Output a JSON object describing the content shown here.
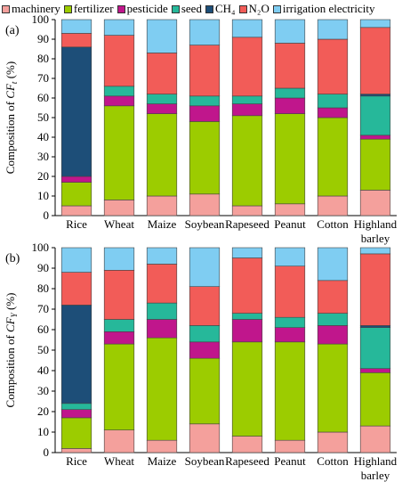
{
  "legend": [
    {
      "name": "machinery",
      "color": "#f4a09c"
    },
    {
      "name": "fertilizer",
      "color": "#9ccc00"
    },
    {
      "name": "pesticide",
      "color": "#c0168c"
    },
    {
      "name": "seed",
      "color": "#26b89a"
    },
    {
      "name": "CH₄",
      "color": "#1d4e78"
    },
    {
      "name": "N₂O",
      "color": "#f25c58"
    },
    {
      "name": "irrigation electricity",
      "color": "#7fcdf2"
    }
  ],
  "chart_data": [
    {
      "type": "bar",
      "stacked": true,
      "panel_label": "(a)",
      "ylabel_prefix": "Composition of ",
      "ylabel_symbol": "CF",
      "ylabel_sub": "t",
      "ylabel_suffix": " (%)",
      "ylim": [
        0,
        100
      ],
      "yticks": [
        0,
        10,
        20,
        30,
        40,
        50,
        60,
        70,
        80,
        90,
        100
      ],
      "categories": [
        "Rice",
        "Wheat",
        "Maize",
        "Soybean",
        "Rapeseed",
        "Peanut",
        "Cotton",
        "Highland barley"
      ],
      "series": [
        {
          "name": "machinery",
          "values": [
            5,
            8,
            10,
            11,
            5,
            6,
            10,
            13
          ]
        },
        {
          "name": "fertilizer",
          "values": [
            12,
            48,
            42,
            37,
            46,
            46,
            40,
            26
          ]
        },
        {
          "name": "pesticide",
          "values": [
            3,
            5,
            5,
            8,
            6,
            8,
            5,
            2
          ]
        },
        {
          "name": "seed",
          "values": [
            0,
            5,
            5,
            5,
            4,
            5,
            7,
            20
          ]
        },
        {
          "name": "CH₄",
          "values": [
            66,
            0,
            0,
            0,
            0,
            0,
            0,
            1
          ]
        },
        {
          "name": "N₂O",
          "values": [
            7,
            26,
            21,
            26,
            30,
            23,
            28,
            34
          ]
        },
        {
          "name": "irrigation electricity",
          "values": [
            7,
            8,
            17,
            13,
            9,
            12,
            10,
            4
          ]
        }
      ]
    },
    {
      "type": "bar",
      "stacked": true,
      "panel_label": "(b)",
      "ylabel_prefix": "Composition of ",
      "ylabel_symbol": "CF",
      "ylabel_sub": "Y",
      "ylabel_suffix": " (%)",
      "ylim": [
        0,
        100
      ],
      "yticks": [
        0,
        10,
        20,
        30,
        40,
        50,
        60,
        70,
        80,
        90,
        100
      ],
      "categories": [
        "Rice",
        "Wheat",
        "Maize",
        "Soybean",
        "Rapeseed",
        "Peanut",
        "Cotton",
        "Highland barley"
      ],
      "series": [
        {
          "name": "machinery",
          "values": [
            2,
            11,
            6,
            14,
            8,
            6,
            10,
            13
          ]
        },
        {
          "name": "fertilizer",
          "values": [
            15,
            42,
            50,
            32,
            46,
            48,
            43,
            26
          ]
        },
        {
          "name": "pesticide",
          "values": [
            4,
            6,
            9,
            8,
            11,
            7,
            9,
            2
          ]
        },
        {
          "name": "seed",
          "values": [
            3,
            6,
            8,
            8,
            3,
            5,
            6,
            20
          ]
        },
        {
          "name": "CH₄",
          "values": [
            48,
            0,
            0,
            0,
            0,
            0,
            0,
            1
          ]
        },
        {
          "name": "N₂O",
          "values": [
            16,
            24,
            19,
            19,
            27,
            25,
            16,
            35
          ]
        },
        {
          "name": "irrigation electricity",
          "values": [
            12,
            11,
            8,
            19,
            5,
            9,
            16,
            3
          ]
        }
      ]
    }
  ]
}
